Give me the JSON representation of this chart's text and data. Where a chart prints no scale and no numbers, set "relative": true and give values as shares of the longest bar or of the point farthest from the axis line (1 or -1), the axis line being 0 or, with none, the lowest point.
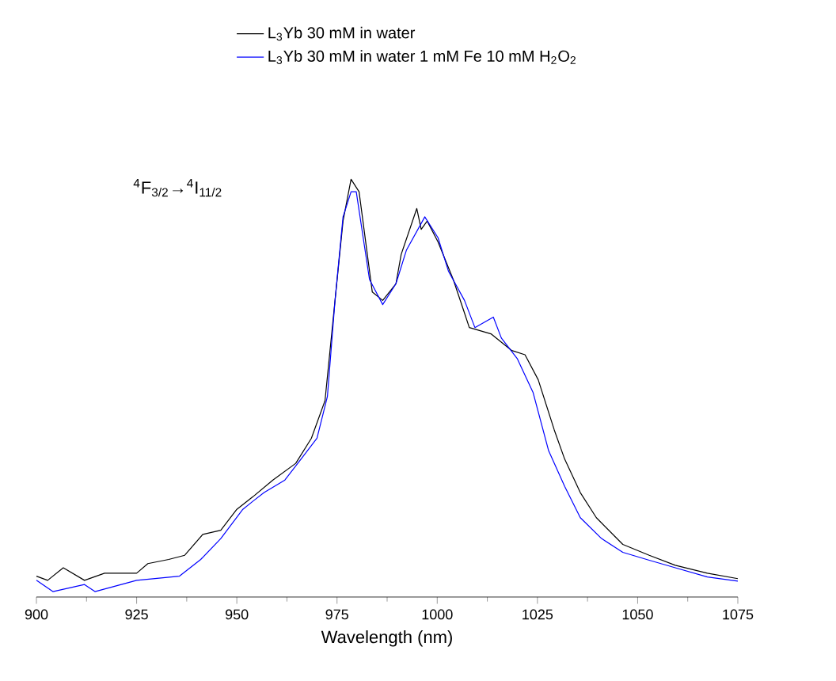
{
  "chart_data": {
    "type": "line",
    "relative": true,
    "xlabel": "Wavelength (nm)",
    "xlim": [
      900,
      1075
    ],
    "xticks": [
      900,
      925,
      950,
      975,
      1000,
      1025,
      1050,
      1075
    ],
    "legend": "top",
    "annotations": [
      "$^{4}$F$_{3/2}$→$^{4}$I$_{11/2}$"
    ],
    "series": [
      {
        "name": "L$_{3}$Yb 30 mM in water",
        "color": "#000000",
        "x": [
          900,
          902.8,
          906.7,
          912,
          917,
          925,
          927.8,
          933,
          937,
          941.5,
          946,
          950,
          954,
          959,
          964.7,
          968.6,
          972,
          974.5,
          976.5,
          978.5,
          980.5,
          983.8,
          986.4,
          989.7,
          991,
          994.9,
          996,
          997.5,
          1000.2,
          1004,
          1006.8,
          1008,
          1013.4,
          1018.6,
          1021.9,
          1025.2,
          1029.2,
          1031.8,
          1035.7,
          1039.7,
          1046.3,
          1052.9,
          1059.4,
          1067.4,
          1075
        ],
        "values": [
          0.05,
          0.04,
          0.07,
          0.04,
          0.057,
          0.057,
          0.08,
          0.09,
          0.1,
          0.15,
          0.16,
          0.21,
          0.24,
          0.28,
          0.32,
          0.38,
          0.47,
          0.71,
          0.9,
          1.0,
          0.97,
          0.73,
          0.71,
          0.75,
          0.82,
          0.93,
          0.88,
          0.9,
          0.85,
          0.76,
          0.68,
          0.645,
          0.63,
          0.59,
          0.58,
          0.52,
          0.4,
          0.33,
          0.25,
          0.19,
          0.126,
          0.1,
          0.076,
          0.057,
          0.044
        ]
      },
      {
        "name": "L$_{3}$Yb 30 mM in water  1 mM Fe 10 mM H$_{2}$O$_{2}$",
        "color": "#0000ff",
        "x": [
          900,
          904.1,
          912,
          914.6,
          925,
          935.7,
          941,
          946,
          951.5,
          954.1,
          956.8,
          962,
          966,
          970,
          972.6,
          974.5,
          976.5,
          978.5,
          979.8,
          983.1,
          986.4,
          989.7,
          992.3,
          996.9,
          1000.2,
          1002.8,
          1006.8,
          1009.4,
          1014,
          1016,
          1020,
          1023.9,
          1027.8,
          1031.8,
          1035.7,
          1041,
          1046.3,
          1052.9,
          1059.4,
          1067.4,
          1075
        ],
        "values": [
          0.04,
          0.013,
          0.03,
          0.013,
          0.04,
          0.05,
          0.09,
          0.14,
          0.21,
          0.23,
          0.25,
          0.28,
          0.33,
          0.38,
          0.48,
          0.71,
          0.91,
          0.97,
          0.97,
          0.76,
          0.7,
          0.75,
          0.83,
          0.91,
          0.86,
          0.78,
          0.71,
          0.645,
          0.67,
          0.62,
          0.57,
          0.49,
          0.35,
          0.265,
          0.19,
          0.14,
          0.107,
          0.088,
          0.07,
          0.048,
          0.038
        ]
      }
    ]
  }
}
